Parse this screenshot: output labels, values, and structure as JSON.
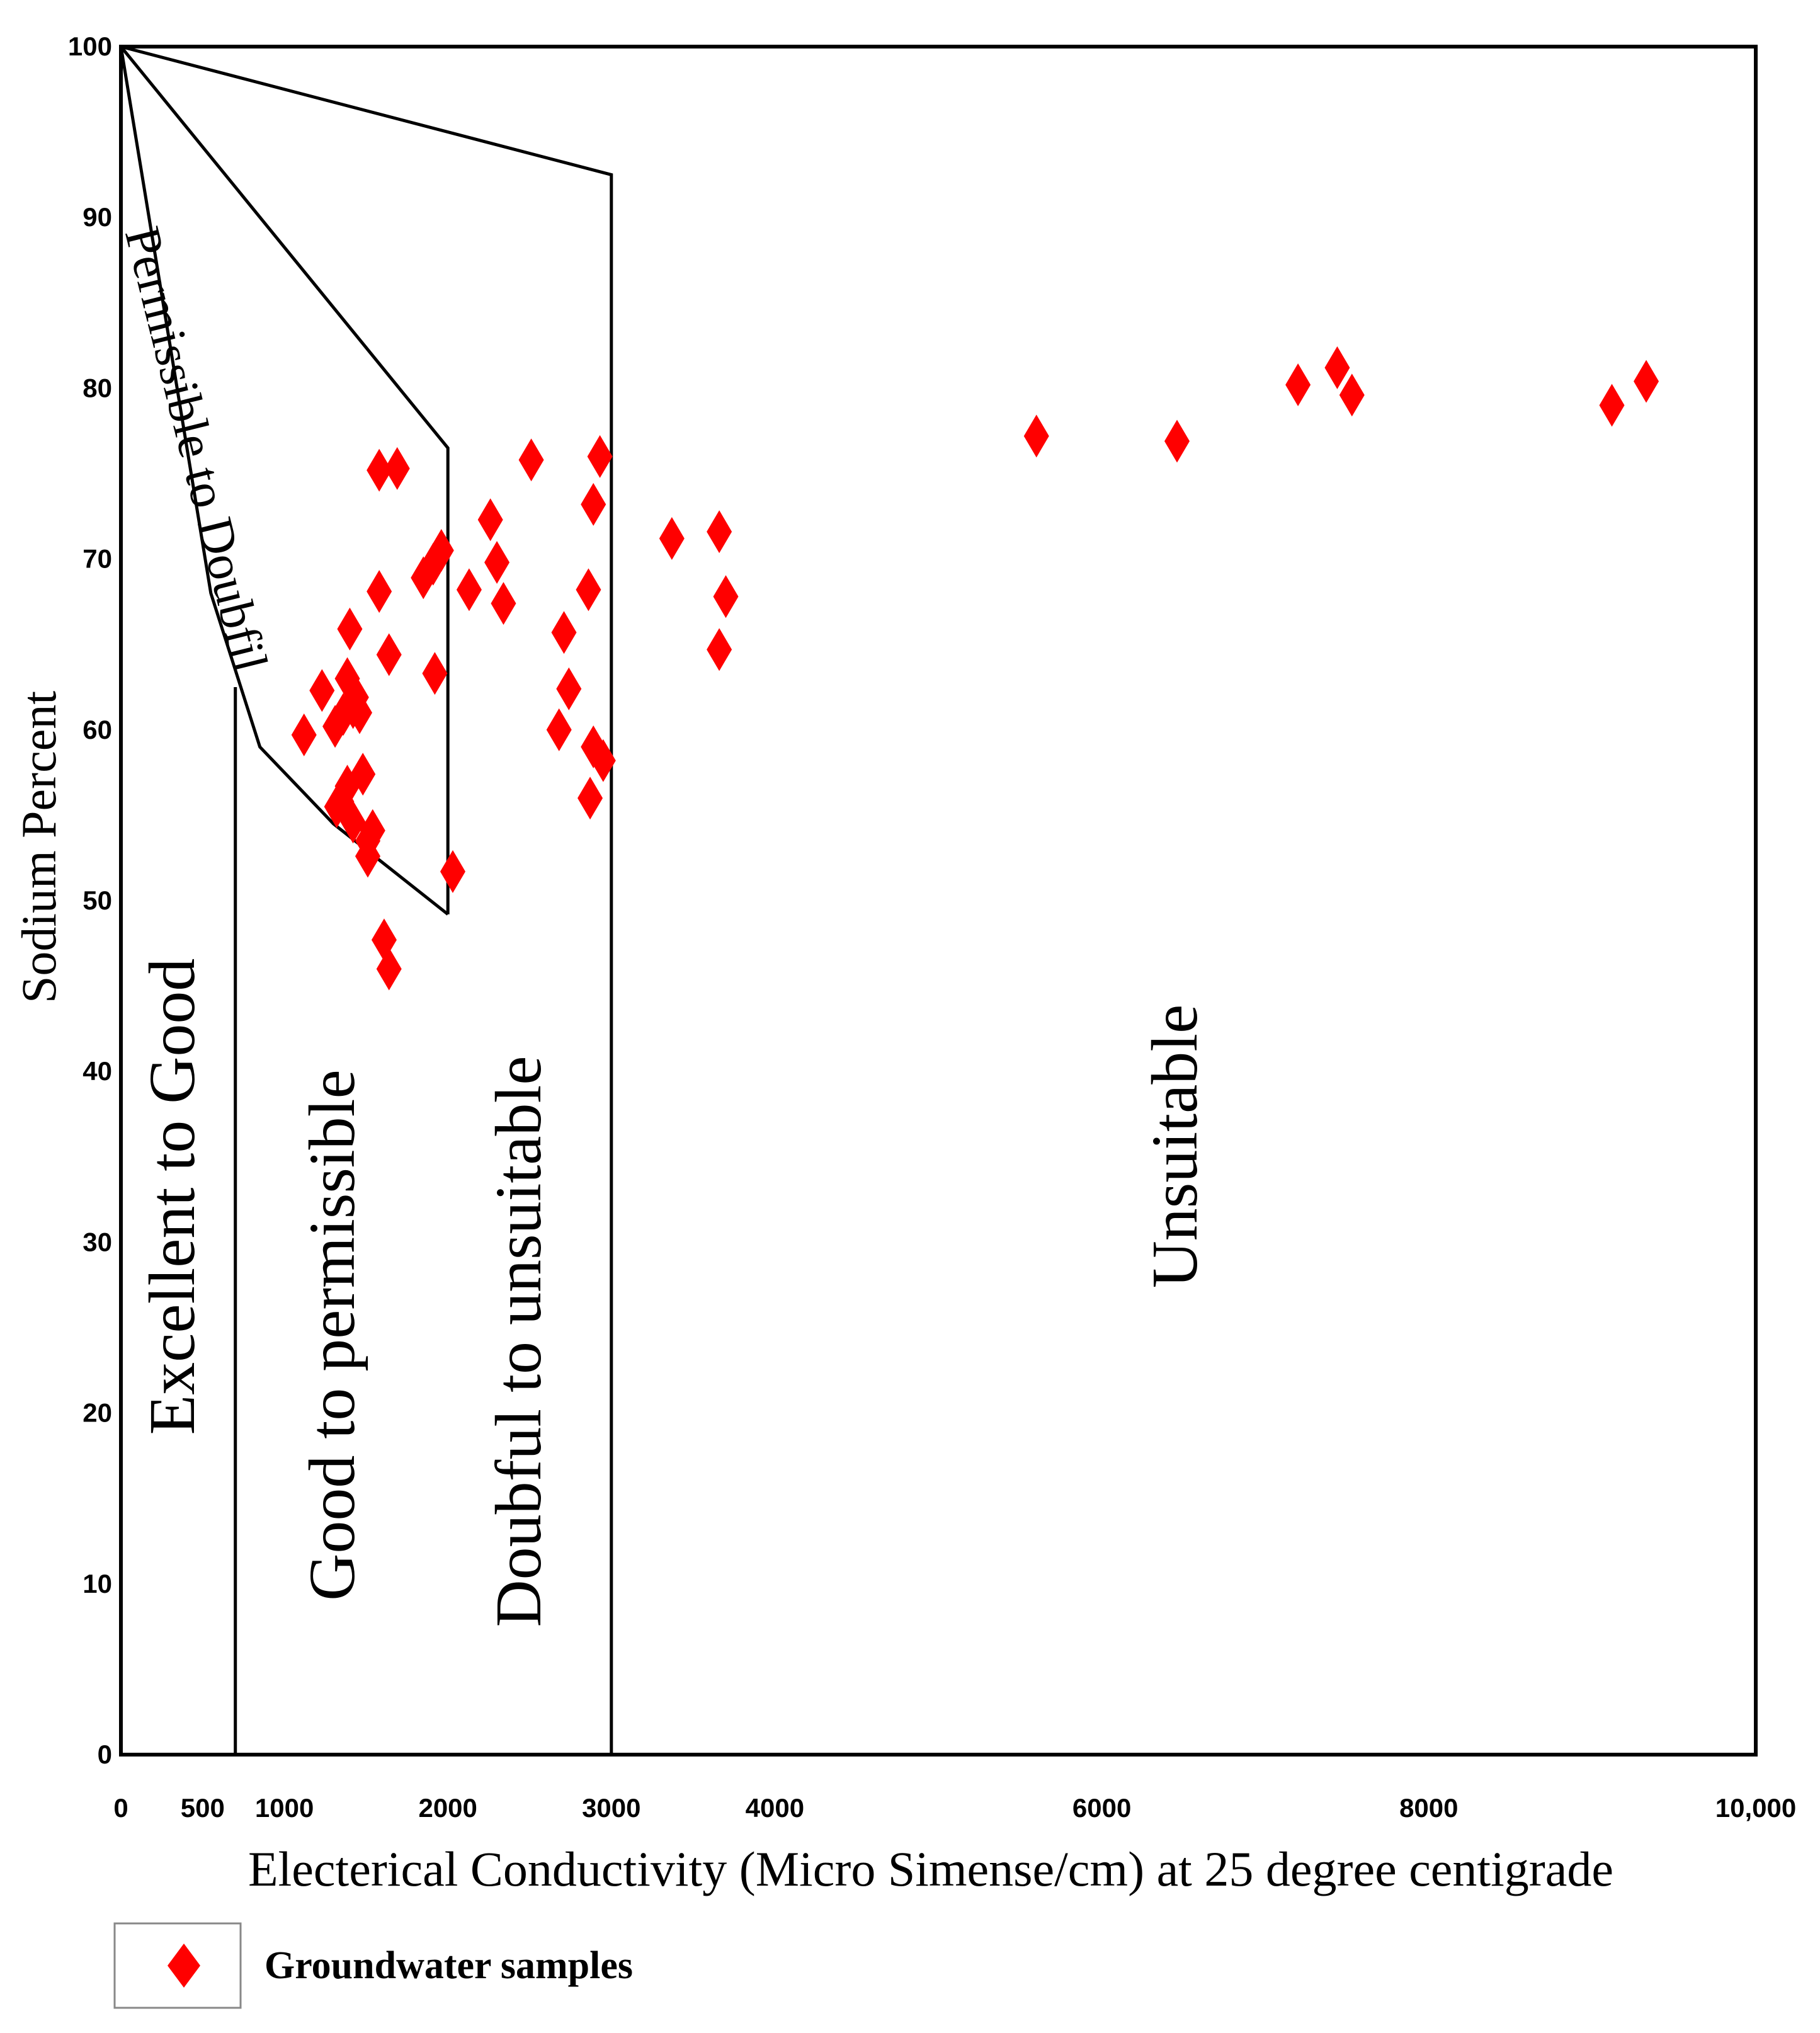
{
  "chart_data": {
    "type": "scatter",
    "title": "",
    "xlabel": "Electerical Conductivity (Micro Simense/cm) at 25 degree centigrade",
    "ylabel": "Sodium Percent",
    "xlim": [
      0,
      10000
    ],
    "ylim": [
      0,
      100
    ],
    "x_ticks": [
      {
        "value": 0,
        "label": "0"
      },
      {
        "value": 500,
        "label": "500"
      },
      {
        "value": 1000,
        "label": "1000"
      },
      {
        "value": 2000,
        "label": "2000"
      },
      {
        "value": 3000,
        "label": "3000"
      },
      {
        "value": 4000,
        "label": "4000"
      },
      {
        "value": 6000,
        "label": "6000"
      },
      {
        "value": 8000,
        "label": "8000"
      },
      {
        "value": 10000,
        "label": "10,000"
      }
    ],
    "y_ticks": [
      0,
      10,
      20,
      30,
      40,
      50,
      60,
      70,
      80,
      90,
      100
    ],
    "regions": [
      {
        "name": "Excellent to Good",
        "boundary": [
          [
            700,
            0
          ],
          [
            700,
            62.5
          ]
        ]
      },
      {
        "name": "Good to permissible",
        "boundary": [
          [
            2000,
            0
          ],
          [
            2000,
            76.5
          ]
        ]
      },
      {
        "name": "Doubful to unsuitable",
        "boundary": [
          [
            3000,
            0
          ],
          [
            3000,
            92.5
          ]
        ]
      },
      {
        "name": "Unsuitable",
        "boundary": []
      },
      {
        "name": "Permissible to Doubfil",
        "boundary": []
      }
    ],
    "boundary_lines": [
      [
        [
          0,
          100
        ],
        [
          3000,
          92.5
        ],
        [
          3000,
          0
        ]
      ],
      [
        [
          0,
          100
        ],
        [
          2000,
          76.5
        ],
        [
          2000,
          49.2
        ]
      ],
      [
        [
          0,
          100
        ],
        [
          550,
          68
        ],
        [
          850,
          59
        ],
        [
          1150,
          56
        ],
        [
          1300,
          54.5
        ],
        [
          2000,
          49.2
        ]
      ],
      [
        [
          700,
          0
        ],
        [
          700,
          62.5
        ]
      ]
    ],
    "series": [
      {
        "name": "Groundwater samples",
        "color": "#ff0000",
        "marker": "diamond",
        "points": [
          [
            1120,
            59.7
          ],
          [
            1230,
            62.3
          ],
          [
            1310,
            60.2
          ],
          [
            1360,
            60.9
          ],
          [
            1385,
            63.0
          ],
          [
            1400,
            65.9
          ],
          [
            1420,
            61.3
          ],
          [
            1440,
            61.9
          ],
          [
            1460,
            61.0
          ],
          [
            1320,
            55.5
          ],
          [
            1350,
            55.8
          ],
          [
            1385,
            56.7
          ],
          [
            1420,
            54.6
          ],
          [
            1480,
            57.4
          ],
          [
            1510,
            53.5
          ],
          [
            1540,
            54.1
          ],
          [
            1510,
            52.6
          ],
          [
            1580,
            68.1
          ],
          [
            1640,
            64.4
          ],
          [
            1580,
            75.2
          ],
          [
            1690,
            75.3
          ],
          [
            1610,
            47.7
          ],
          [
            1640,
            46.0
          ],
          [
            1850,
            68.9
          ],
          [
            1910,
            69.7
          ],
          [
            1960,
            70.5
          ],
          [
            1920,
            63.3
          ],
          [
            2030,
            51.7
          ],
          [
            2130,
            68.2
          ],
          [
            2260,
            72.3
          ],
          [
            2300,
            69.8
          ],
          [
            2340,
            67.4
          ],
          [
            2510,
            75.8
          ],
          [
            2680,
            60.0
          ],
          [
            2710,
            65.7
          ],
          [
            2740,
            62.4
          ],
          [
            2860,
            68.2
          ],
          [
            2890,
            73.2
          ],
          [
            2930,
            76.0
          ],
          [
            2870,
            56.0
          ],
          [
            2890,
            59.0
          ],
          [
            2950,
            58.2
          ],
          [
            3370,
            71.2
          ],
          [
            3660,
            71.6
          ],
          [
            3660,
            64.7
          ],
          [
            3700,
            67.8
          ],
          [
            5600,
            77.2
          ],
          [
            6460,
            76.9
          ],
          [
            7200,
            80.2
          ],
          [
            7440,
            81.2
          ],
          [
            7530,
            79.6
          ],
          [
            9120,
            79.0
          ],
          [
            9330,
            80.4
          ]
        ]
      }
    ],
    "legend": {
      "label": "Groundwater samples",
      "position": "bottom-left"
    }
  }
}
